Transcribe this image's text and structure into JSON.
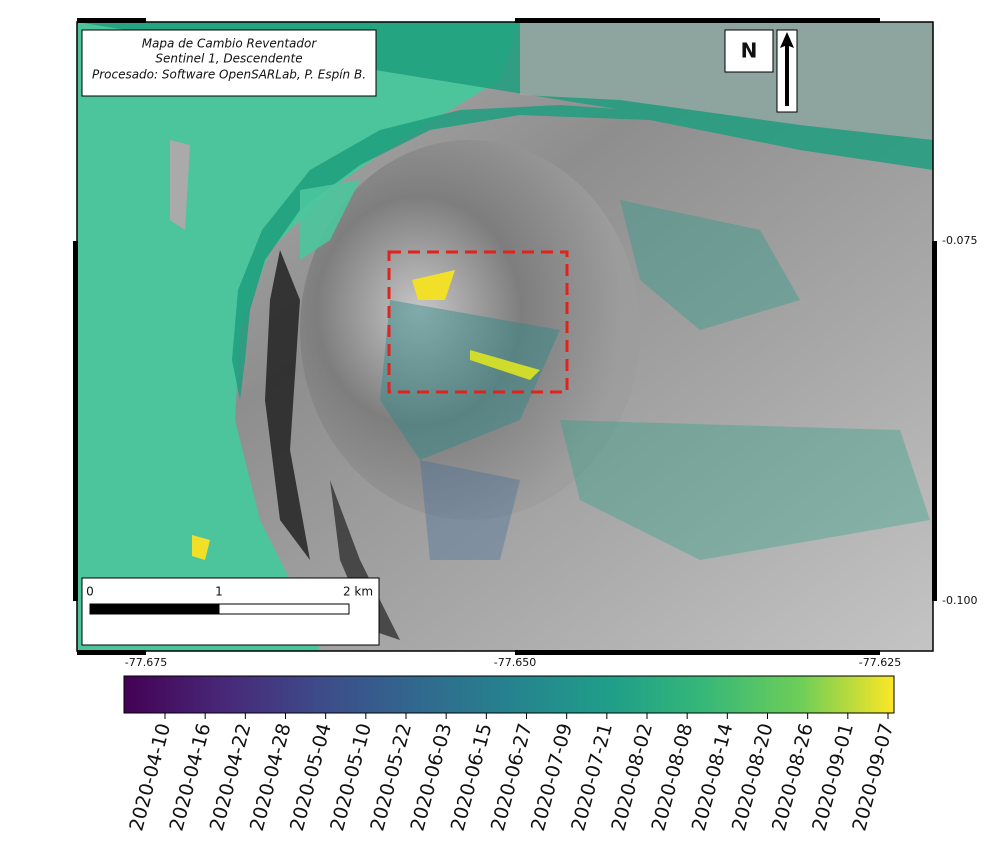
{
  "title_box": {
    "lines": [
      "Mapa de Cambio Reventador",
      "Sentinel 1, Descendente",
      "Procesado: Software OpenSARLab, P. Espín B."
    ]
  },
  "north_label": "N",
  "scale_bar": {
    "labels": [
      "0",
      "1",
      "2 km"
    ]
  },
  "latitude_labels": [
    "-0.075",
    "-0.100"
  ],
  "longitude_labels": [
    "-77.675",
    "-77.650",
    "-77.625"
  ],
  "colorbar": {
    "ticks": [
      "2020-04-10",
      "2020-04-16",
      "2020-04-22",
      "2020-04-28",
      "2020-05-04",
      "2020-05-10",
      "2020-05-22",
      "2020-06-03",
      "2020-06-15",
      "2020-06-27",
      "2020-07-09",
      "2020-07-21",
      "2020-08-02",
      "2020-08-08",
      "2020-08-14",
      "2020-08-20",
      "2020-08-26",
      "2020-09-01",
      "2020-09-07"
    ]
  }
}
